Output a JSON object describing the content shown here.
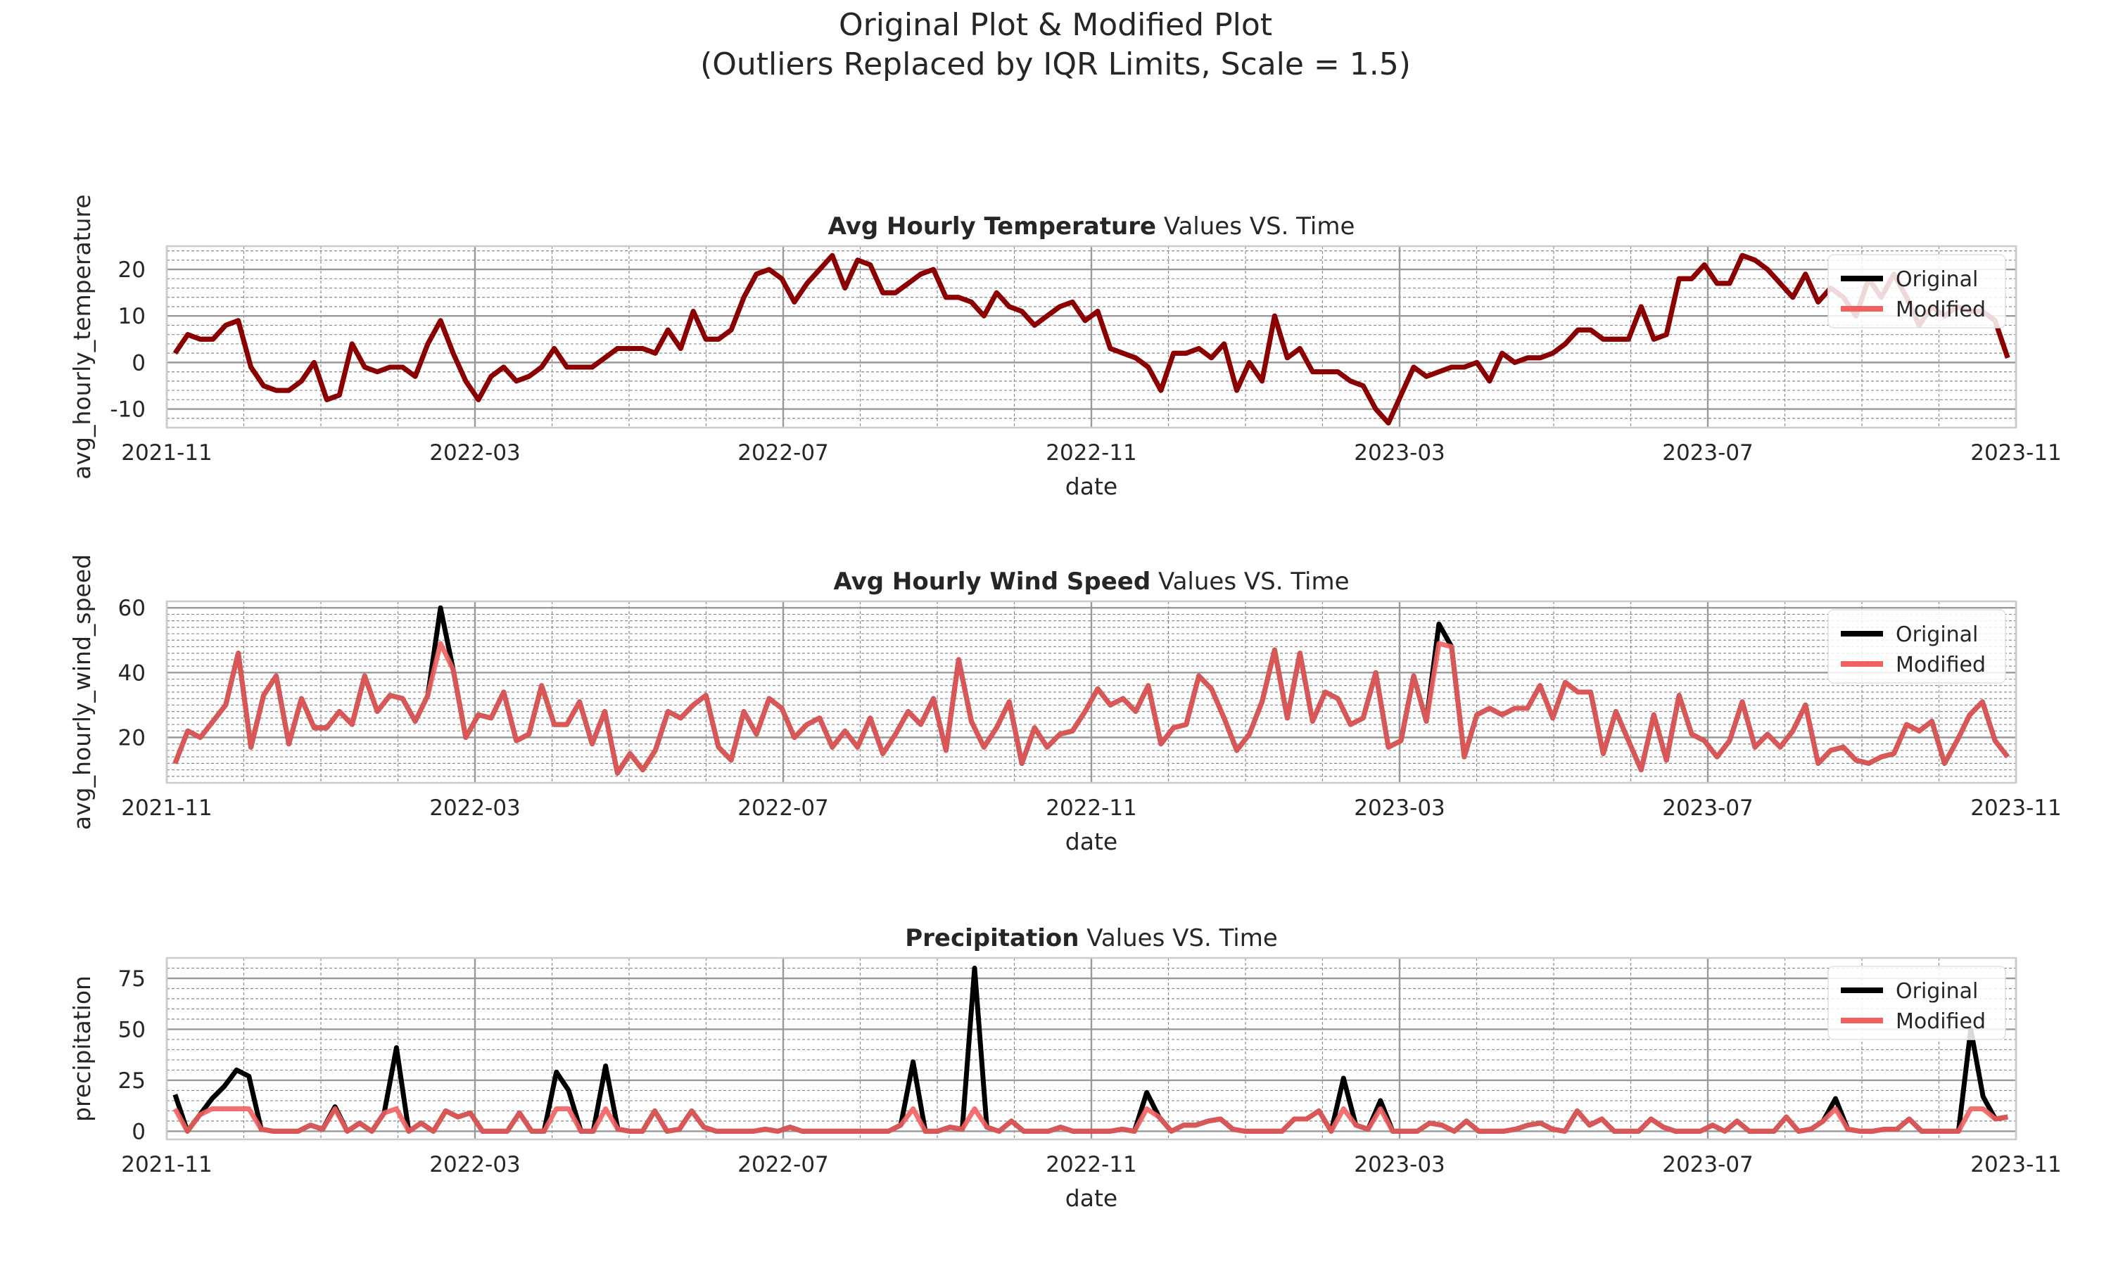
{
  "figure": {
    "title_line1": "Original Plot & Modified Plot",
    "title_line2": "(Outliers Replaced by IQR Limits, Scale = 1.5)",
    "colors": {
      "original": "#000000",
      "modified": "#f26060",
      "overlap": "#8b0000",
      "grid": "#b0b0b0",
      "frame": "#cccccc"
    },
    "x_ticks": [
      "2021-11",
      "2022-03",
      "2022-07",
      "2022-11",
      "2023-03",
      "2023-07",
      "2023-11"
    ],
    "xlabel": "date",
    "legend": [
      "Original",
      "Modified"
    ]
  },
  "chart_data": [
    {
      "type": "line",
      "title_bold": "Avg Hourly Temperature",
      "title_rest": " Values VS. Time",
      "xlabel": "date",
      "ylabel": "avg_hourly_temperature",
      "x_range": [
        "2021-11",
        "2023-11"
      ],
      "ylim": [
        -14,
        25
      ],
      "y_ticks": [
        -10,
        0,
        10,
        20
      ],
      "grid": true,
      "legend_position": "top-right",
      "series": [
        {
          "name": "Original",
          "values": [
            2,
            6,
            5,
            5,
            8,
            9,
            -1,
            -5,
            -6,
            -6,
            -4,
            0,
            -8,
            -7,
            4,
            -1,
            -2,
            -1,
            -1,
            -3,
            4,
            9,
            2,
            -4,
            -8,
            -3,
            -1,
            -4,
            -3,
            -1,
            3,
            -1,
            -1,
            -1,
            1,
            3,
            3,
            3,
            2,
            7,
            3,
            11,
            5,
            5,
            7,
            14,
            19,
            20,
            18,
            13,
            17,
            20,
            23,
            16,
            22,
            21,
            15,
            15,
            17,
            19,
            20,
            14,
            14,
            13,
            10,
            15,
            12,
            11,
            8,
            10,
            12,
            13,
            9,
            11,
            3,
            2,
            1,
            -1,
            -6,
            2,
            2,
            3,
            1,
            4,
            -6,
            0,
            -4,
            10,
            1,
            3,
            -2,
            -2,
            -2,
            -4,
            -5,
            -10,
            -13,
            -7,
            -1,
            -3,
            -2,
            -1,
            -1,
            0,
            -4,
            2,
            0,
            1,
            1,
            2,
            4,
            7,
            7,
            5,
            5,
            5,
            12,
            5,
            6,
            18,
            18,
            21,
            17,
            17,
            23,
            22,
            20,
            17,
            14,
            19,
            13,
            16,
            14,
            10,
            18,
            14,
            19,
            14,
            8,
            12,
            10,
            12,
            11,
            11,
            9,
            1
          ]
        },
        {
          "name": "Modified",
          "values": [
            2,
            6,
            5,
            5,
            8,
            9,
            -1,
            -5,
            -6,
            -6,
            -4,
            0,
            -8,
            -7,
            4,
            -1,
            -2,
            -1,
            -1,
            -3,
            4,
            9,
            2,
            -4,
            -8,
            -3,
            -1,
            -4,
            -3,
            -1,
            3,
            -1,
            -1,
            -1,
            1,
            3,
            3,
            3,
            2,
            7,
            3,
            11,
            5,
            5,
            7,
            14,
            19,
            20,
            18,
            13,
            17,
            20,
            23,
            16,
            22,
            21,
            15,
            15,
            17,
            19,
            20,
            14,
            14,
            13,
            10,
            15,
            12,
            11,
            8,
            10,
            12,
            13,
            9,
            11,
            3,
            2,
            1,
            -1,
            -6,
            2,
            2,
            3,
            1,
            4,
            -6,
            0,
            -4,
            10,
            1,
            3,
            -2,
            -2,
            -2,
            -4,
            -5,
            -10,
            -13,
            -7,
            -1,
            -3,
            -2,
            -1,
            -1,
            0,
            -4,
            2,
            0,
            1,
            1,
            2,
            4,
            7,
            7,
            5,
            5,
            5,
            12,
            5,
            6,
            18,
            18,
            21,
            17,
            17,
            23,
            22,
            20,
            17,
            14,
            19,
            13,
            16,
            14,
            10,
            18,
            14,
            19,
            14,
            8,
            12,
            10,
            12,
            11,
            11,
            9,
            1
          ]
        }
      ]
    },
    {
      "type": "line",
      "title_bold": "Avg Hourly Wind Speed",
      "title_rest": " Values VS. Time",
      "xlabel": "date",
      "ylabel": "avg_hourly_wind_speed",
      "x_range": [
        "2021-11",
        "2023-11"
      ],
      "ylim": [
        6,
        62
      ],
      "y_ticks": [
        20,
        40,
        60
      ],
      "grid": true,
      "legend_position": "top-right",
      "series": [
        {
          "name": "Original",
          "values": [
            12,
            22,
            20,
            25,
            30,
            46,
            17,
            33,
            39,
            18,
            32,
            23,
            23,
            28,
            24,
            39,
            28,
            33,
            32,
            25,
            33,
            60,
            41,
            20,
            27,
            26,
            34,
            19,
            21,
            36,
            24,
            24,
            31,
            18,
            28,
            9,
            15,
            10,
            16,
            28,
            26,
            30,
            33,
            17,
            13,
            28,
            21,
            32,
            29,
            20,
            24,
            26,
            17,
            22,
            17,
            26,
            15,
            21,
            28,
            24,
            32,
            16,
            44,
            25,
            17,
            23,
            31,
            12,
            23,
            17,
            21,
            22,
            28,
            35,
            30,
            32,
            28,
            36,
            18,
            23,
            24,
            39,
            35,
            26,
            16,
            21,
            31,
            47,
            26,
            46,
            25,
            34,
            32,
            24,
            26,
            40,
            17,
            19,
            39,
            25,
            55,
            48,
            14,
            27,
            29,
            27,
            29,
            29,
            36,
            26,
            37,
            34,
            34,
            15,
            28,
            19,
            10,
            27,
            13,
            33,
            21,
            19,
            14,
            19,
            31,
            17,
            21,
            17,
            22,
            30,
            12,
            16,
            17,
            13,
            12,
            14,
            15,
            24,
            22,
            25,
            12,
            19,
            27,
            31,
            19,
            14
          ]
        },
        {
          "name": "Modified",
          "values": [
            12,
            22,
            20,
            25,
            30,
            46,
            17,
            33,
            39,
            18,
            32,
            23,
            23,
            28,
            24,
            39,
            28,
            33,
            32,
            25,
            33,
            49,
            41,
            20,
            27,
            26,
            34,
            19,
            21,
            36,
            24,
            24,
            31,
            18,
            28,
            9,
            15,
            10,
            16,
            28,
            26,
            30,
            33,
            17,
            13,
            28,
            21,
            32,
            29,
            20,
            24,
            26,
            17,
            22,
            17,
            26,
            15,
            21,
            28,
            24,
            32,
            16,
            44,
            25,
            17,
            23,
            31,
            12,
            23,
            17,
            21,
            22,
            28,
            35,
            30,
            32,
            28,
            36,
            18,
            23,
            24,
            39,
            35,
            26,
            16,
            21,
            31,
            47,
            26,
            46,
            25,
            34,
            32,
            24,
            26,
            40,
            17,
            19,
            39,
            25,
            49,
            48,
            14,
            27,
            29,
            27,
            29,
            29,
            36,
            26,
            37,
            34,
            34,
            15,
            28,
            19,
            10,
            27,
            13,
            33,
            21,
            19,
            14,
            19,
            31,
            17,
            21,
            17,
            22,
            30,
            12,
            16,
            17,
            13,
            12,
            14,
            15,
            24,
            22,
            25,
            12,
            19,
            27,
            31,
            19,
            14
          ]
        }
      ]
    },
    {
      "type": "line",
      "title_bold": "Precipitation",
      "title_rest": " Values VS. Time",
      "xlabel": "date",
      "ylabel": "precipitation",
      "x_range": [
        "2021-11",
        "2023-11"
      ],
      "ylim": [
        -4,
        85
      ],
      "y_ticks": [
        0,
        25,
        50,
        75
      ],
      "grid": true,
      "legend_position": "top-right",
      "series": [
        {
          "name": "Original",
          "values": [
            18,
            0,
            8,
            16,
            22,
            30,
            27,
            1,
            0,
            0,
            0,
            3,
            1,
            12,
            0,
            4,
            0,
            9,
            41,
            0,
            4,
            0,
            10,
            7,
            9,
            0,
            0,
            0,
            9,
            0,
            0,
            29,
            20,
            0,
            0,
            32,
            1,
            0,
            0,
            10,
            0,
            1,
            10,
            2,
            0,
            0,
            0,
            0,
            1,
            0,
            2,
            0,
            0,
            0,
            0,
            0,
            0,
            0,
            0,
            3,
            34,
            0,
            0,
            2,
            1,
            80,
            2,
            0,
            5,
            0,
            0,
            0,
            2,
            0,
            0,
            0,
            0,
            1,
            0,
            19,
            7,
            0,
            3,
            3,
            5,
            6,
            1,
            0,
            0,
            0,
            0,
            6,
            6,
            10,
            0,
            26,
            3,
            1,
            15,
            0,
            0,
            0,
            4,
            3,
            0,
            5,
            0,
            0,
            0,
            1,
            3,
            4,
            1,
            0,
            10,
            3,
            6,
            0,
            0,
            0,
            6,
            2,
            0,
            0,
            0,
            3,
            0,
            5,
            0,
            0,
            0,
            7,
            0,
            1,
            5,
            16,
            1,
            0,
            0,
            1,
            1,
            6,
            0,
            0,
            0,
            0,
            50,
            17,
            6,
            7
          ]
        },
        {
          "name": "Modified",
          "values": [
            11,
            0,
            8,
            11,
            11,
            11,
            11,
            1,
            0,
            0,
            0,
            3,
            1,
            11,
            0,
            4,
            0,
            9,
            11,
            0,
            4,
            0,
            10,
            7,
            9,
            0,
            0,
            0,
            9,
            0,
            0,
            11,
            11,
            0,
            0,
            11,
            1,
            0,
            0,
            10,
            0,
            1,
            10,
            2,
            0,
            0,
            0,
            0,
            1,
            0,
            2,
            0,
            0,
            0,
            0,
            0,
            0,
            0,
            0,
            3,
            11,
            0,
            0,
            2,
            1,
            11,
            2,
            0,
            5,
            0,
            0,
            0,
            2,
            0,
            0,
            0,
            0,
            1,
            0,
            11,
            7,
            0,
            3,
            3,
            5,
            6,
            1,
            0,
            0,
            0,
            0,
            6,
            6,
            10,
            0,
            11,
            3,
            1,
            11,
            0,
            0,
            0,
            4,
            3,
            0,
            5,
            0,
            0,
            0,
            1,
            3,
            4,
            1,
            0,
            10,
            3,
            6,
            0,
            0,
            0,
            6,
            2,
            0,
            0,
            0,
            3,
            0,
            5,
            0,
            0,
            0,
            7,
            0,
            1,
            5,
            11,
            1,
            0,
            0,
            1,
            1,
            6,
            0,
            0,
            0,
            0,
            11,
            11,
            6,
            7
          ]
        }
      ]
    }
  ]
}
